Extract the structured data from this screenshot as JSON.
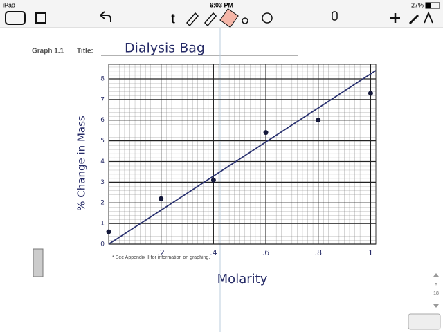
{
  "status_bar": {
    "device": "iPad",
    "time": "6:03 PM",
    "battery": "27%"
  },
  "page": {
    "graph_label": "Graph 1.1",
    "title_label": "Title:",
    "footnote": "* See Appendix II for information on graphing.",
    "page_current": "6",
    "page_total": "18"
  },
  "chart_data": {
    "type": "scatter",
    "title": "Dialysis Bag",
    "x_label": "Molarity",
    "y_label": "% Change in Mass",
    "points": {
      "color": "#14183a",
      "x": [
        0,
        0.2,
        0.4,
        0.6,
        0.8,
        1
      ],
      "values": [
        0.6,
        2.2,
        3.1,
        5.4,
        6.0,
        7.3
      ]
    },
    "fit_line": {
      "color": "#2a3270",
      "x": [
        0,
        1.02
      ],
      "values": [
        0,
        8.4
      ]
    },
    "xlim": [
      0,
      1.02
    ],
    "ylim": [
      0,
      8.7
    ],
    "xticks": [
      {
        "value": 0.2,
        "label": ".2"
      },
      {
        "value": 0.4,
        "label": ".4"
      },
      {
        "value": 0.6,
        "label": ".6"
      },
      {
        "value": 0.8,
        "label": ".8"
      },
      1
    ],
    "yticks": [
      0,
      1,
      2,
      3,
      4,
      5,
      6,
      7,
      8
    ],
    "grid": true
  }
}
